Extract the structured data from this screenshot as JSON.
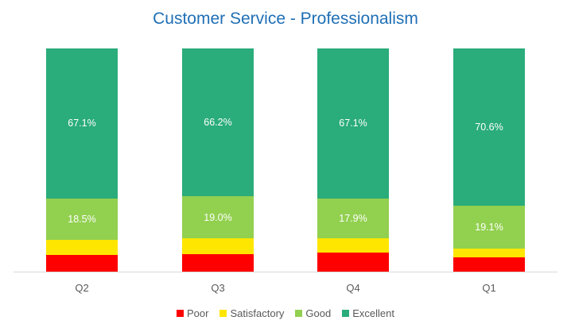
{
  "chart_data": {
    "type": "bar",
    "stacked": true,
    "percent_stacked": true,
    "title": "Customer Service - Professionalism",
    "xlabel": "",
    "ylabel": "",
    "ylim": [
      0,
      100
    ],
    "grid": false,
    "legend_position": "bottom",
    "categories": [
      "Q2",
      "Q3",
      "Q4",
      "Q1"
    ],
    "series": [
      {
        "name": "Poor",
        "color": "#ff0000",
        "values": [
          7.6,
          7.7,
          8.6,
          6.4
        ],
        "labels": [
          "",
          "",
          "",
          ""
        ]
      },
      {
        "name": "Satisfactory",
        "color": "#ffe600",
        "values": [
          6.8,
          7.1,
          6.4,
          3.9
        ],
        "labels": [
          "",
          "",
          "",
          ""
        ]
      },
      {
        "name": "Good",
        "color": "#92d050",
        "values": [
          18.5,
          19.0,
          17.9,
          19.1
        ],
        "labels": [
          "18.5%",
          "19.0%",
          "17.9%",
          "19.1%"
        ]
      },
      {
        "name": "Excellent",
        "color": "#2aac7b",
        "values": [
          67.1,
          66.2,
          67.1,
          70.6
        ],
        "labels": [
          "67.1%",
          "66.2%",
          "67.1%",
          "70.6%"
        ]
      }
    ]
  },
  "legend": [
    {
      "label": "Poor",
      "color": "#ff0000"
    },
    {
      "label": "Satisfactory",
      "color": "#ffe600"
    },
    {
      "label": "Good",
      "color": "#92d050"
    },
    {
      "label": "Excellent",
      "color": "#2aac7b"
    }
  ]
}
